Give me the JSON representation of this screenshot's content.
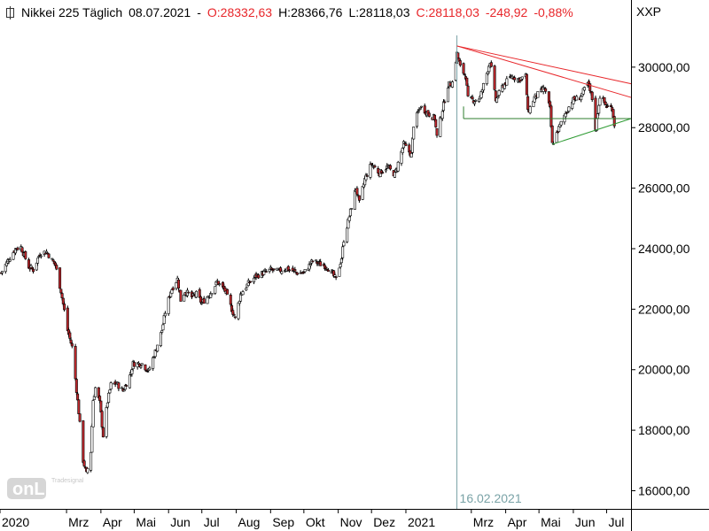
{
  "header": {
    "instrument": "Nikkei 225 Täglich",
    "date": "08.07.2021",
    "dash": "-",
    "open": "O:28332,63",
    "high": "H:28366,76",
    "low": "L:28118,03",
    "close": "C:28118,03",
    "change": "-248,92",
    "change_pct": "-0,88%"
  },
  "symbol": "XXP",
  "logo": {
    "small_text": "Tradesignal",
    "main_text": "onLine"
  },
  "colors": {
    "up_candle": "#ffffff",
    "down_candle": "#c0282d",
    "resistance_line": "#e8262a",
    "support_line": "#2e9b33",
    "horizontal_support": "#2e7d2e",
    "marker_line": "#7aa3a7",
    "negative_text": "#e8262a"
  },
  "chart_data": {
    "type": "candlestick",
    "title": "Nikkei 225 Täglich",
    "y_axis": {
      "side": "right",
      "ticks": [
        "30000,00",
        "28000,00",
        "26000,00",
        "24000,00",
        "22000,00",
        "20000,00",
        "18000,00",
        "16000,00"
      ],
      "tick_values": [
        30000,
        28000,
        26000,
        24000,
        22000,
        20000,
        18000,
        16000
      ],
      "range": [
        15400,
        31400
      ]
    },
    "x_axis": {
      "ticks": [
        "2020",
        "Mrz",
        "Apr",
        "Mai",
        "Jun",
        "Jul",
        "Aug",
        "Sep",
        "Okt",
        "Nov",
        "Dez",
        "2021",
        "Mrz",
        "Apr",
        "Mai",
        "Jun",
        "Jul"
      ],
      "tick_months": [
        "2020-01",
        "2020-03",
        "2020-04",
        "2020-05",
        "2020-06",
        "2020-07",
        "2020-08",
        "2020-09",
        "2020-10",
        "2020-11",
        "2020-12",
        "2021-01",
        "2021-03",
        "2021-04",
        "2021-05",
        "2021-06",
        "2021-07"
      ],
      "range": [
        "2020-01-01",
        "2021-07-23"
      ]
    },
    "close_path": [
      [
        "2020-01-02",
        23200
      ],
      [
        "2020-01-08",
        23600
      ],
      [
        "2020-01-15",
        24000
      ],
      [
        "2020-01-20",
        24050
      ],
      [
        "2020-01-27",
        23400
      ],
      [
        "2020-01-31",
        23300
      ],
      [
        "2020-02-06",
        23850
      ],
      [
        "2020-02-12",
        23900
      ],
      [
        "2020-02-20",
        23450
      ],
      [
        "2020-02-25",
        22600
      ],
      [
        "2020-03-02",
        21300
      ],
      [
        "2020-03-06",
        20750
      ],
      [
        "2020-03-09",
        19700
      ],
      [
        "2020-03-12",
        18600
      ],
      [
        "2020-03-16",
        17000
      ],
      [
        "2020-03-19",
        16550
      ],
      [
        "2020-03-23",
        17300
      ],
      [
        "2020-03-25",
        19000
      ],
      [
        "2020-03-27",
        19400
      ],
      [
        "2020-03-31",
        18900
      ],
      [
        "2020-04-03",
        17820
      ],
      [
        "2020-04-07",
        18950
      ],
      [
        "2020-04-10",
        19500
      ],
      [
        "2020-04-15",
        19550
      ],
      [
        "2020-04-21",
        19300
      ],
      [
        "2020-04-27",
        19800
      ],
      [
        "2020-04-30",
        20200
      ],
      [
        "2020-05-08",
        20200
      ],
      [
        "2020-05-14",
        19950
      ],
      [
        "2020-05-20",
        20600
      ],
      [
        "2020-05-26",
        21300
      ],
      [
        "2020-05-29",
        21900
      ],
      [
        "2020-06-03",
        22600
      ],
      [
        "2020-06-09",
        23000
      ],
      [
        "2020-06-12",
        22300
      ],
      [
        "2020-06-16",
        22600
      ],
      [
        "2020-06-22",
        22400
      ],
      [
        "2020-06-26",
        22500
      ],
      [
        "2020-07-01",
        22200
      ],
      [
        "2020-07-08",
        22500
      ],
      [
        "2020-07-15",
        22900
      ],
      [
        "2020-07-22",
        22600
      ],
      [
        "2020-07-31",
        21700
      ],
      [
        "2020-08-05",
        22500
      ],
      [
        "2020-08-12",
        22850
      ],
      [
        "2020-08-19",
        23100
      ],
      [
        "2020-08-26",
        23200
      ],
      [
        "2020-09-01",
        23300
      ],
      [
        "2020-09-08",
        23250
      ],
      [
        "2020-09-15",
        23350
      ],
      [
        "2020-09-25",
        23200
      ],
      [
        "2020-10-01",
        23200
      ],
      [
        "2020-10-09",
        23600
      ],
      [
        "2020-10-15",
        23500
      ],
      [
        "2020-10-22",
        23400
      ],
      [
        "2020-10-30",
        22980
      ],
      [
        "2020-11-04",
        23700
      ],
      [
        "2020-11-06",
        24300
      ],
      [
        "2020-11-10",
        24900
      ],
      [
        "2020-11-13",
        25400
      ],
      [
        "2020-11-17",
        26000
      ],
      [
        "2020-11-20",
        25500
      ],
      [
        "2020-11-25",
        26300
      ],
      [
        "2020-12-01",
        26800
      ],
      [
        "2020-12-08",
        26500
      ],
      [
        "2020-12-15",
        26700
      ],
      [
        "2020-12-22",
        26450
      ],
      [
        "2020-12-30",
        27450
      ],
      [
        "2021-01-06",
        27100
      ],
      [
        "2021-01-08",
        28100
      ],
      [
        "2021-01-14",
        28700
      ],
      [
        "2021-01-20",
        28500
      ],
      [
        "2021-01-27",
        28300
      ],
      [
        "2021-01-29",
        27700
      ],
      [
        "2021-02-03",
        28600
      ],
      [
        "2021-02-08",
        29400
      ],
      [
        "2021-02-12",
        29500
      ],
      [
        "2021-02-16",
        30450
      ],
      [
        "2021-02-19",
        30000
      ],
      [
        "2021-02-24",
        29700
      ],
      [
        "2021-02-26",
        28950
      ],
      [
        "2021-03-04",
        28900
      ],
      [
        "2021-03-09",
        29000
      ],
      [
        "2021-03-15",
        29800
      ],
      [
        "2021-03-18",
        30200
      ],
      [
        "2021-03-23",
        28900
      ],
      [
        "2021-03-29",
        29350
      ],
      [
        "2021-04-06",
        29700
      ],
      [
        "2021-04-13",
        29600
      ],
      [
        "2021-04-19",
        29700
      ],
      [
        "2021-04-21",
        28500
      ],
      [
        "2021-04-27",
        29000
      ],
      [
        "2021-05-06",
        29300
      ],
      [
        "2021-05-11",
        28600
      ],
      [
        "2021-05-13",
        27450
      ],
      [
        "2021-05-18",
        27900
      ],
      [
        "2021-05-24",
        28400
      ],
      [
        "2021-05-31",
        28900
      ],
      [
        "2021-06-07",
        29000
      ],
      [
        "2021-06-14",
        29450
      ],
      [
        "2021-06-18",
        28950
      ],
      [
        "2021-06-21",
        28000
      ],
      [
        "2021-06-25",
        29050
      ],
      [
        "2021-07-01",
        28700
      ],
      [
        "2021-07-06",
        28650
      ],
      [
        "2021-07-08",
        28118
      ]
    ],
    "annotations": {
      "vertical_marker": {
        "date": "2021-02-16",
        "label": "16.02.2021"
      },
      "trendlines": [
        {
          "name": "resistance-upper",
          "color": "red",
          "from": [
            "2021-02-16",
            30700
          ],
          "to": [
            "2021-07-23",
            29450
          ]
        },
        {
          "name": "resistance-lower",
          "color": "red",
          "from": [
            "2021-02-16",
            30700
          ],
          "to": [
            "2021-07-23",
            29000
          ]
        },
        {
          "name": "support-rising",
          "color": "green",
          "from": [
            "2021-05-13",
            27450
          ],
          "to": [
            "2021-07-23",
            28300
          ]
        },
        {
          "name": "support-horizontal",
          "color": "green",
          "from": [
            "2021-02-22",
            28300
          ],
          "to": [
            "2021-07-23",
            28300
          ]
        },
        {
          "name": "support-bracket",
          "color": "green",
          "from": [
            "2021-02-22",
            28300
          ],
          "to": [
            "2021-02-22",
            28700
          ]
        }
      ]
    },
    "grid": false
  }
}
